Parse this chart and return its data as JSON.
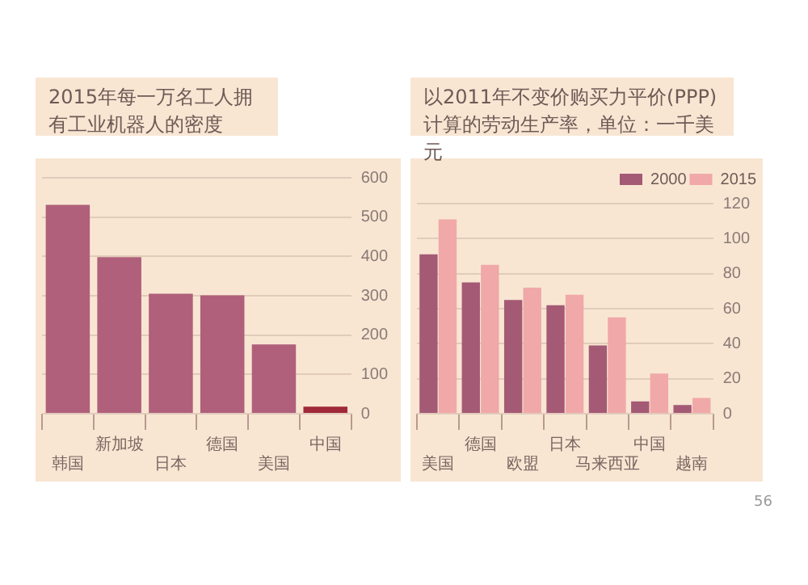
{
  "chart_data": [
    {
      "type": "bar",
      "title": "2015年每一万名工人拥有工业机器人的密度",
      "categories": [
        "韩国",
        "新加坡",
        "日本",
        "德国",
        "美国",
        "中国"
      ],
      "values": [
        531,
        398,
        305,
        301,
        176,
        18
      ],
      "colors": [
        "#b0607a",
        "#b0607a",
        "#b0607a",
        "#b0607a",
        "#b0607a",
        "#a02838"
      ],
      "ylim": [
        0,
        600
      ],
      "yticks": [
        0,
        100,
        200,
        300,
        400,
        500,
        600
      ],
      "grid": "y",
      "legend": false
    },
    {
      "type": "bar",
      "title": "以2011年不变价购买力平价(PPP)计算的劳动生产率，单位：一千美元",
      "categories": [
        "美国",
        "德国",
        "欧盟",
        "日本",
        "马来西亚",
        "中国",
        "越南"
      ],
      "series": [
        {
          "name": "2000",
          "color": "#a45a74",
          "values": [
            91,
            75,
            65,
            62,
            39,
            7,
            5
          ]
        },
        {
          "name": "2015",
          "color": "#f0a8a8",
          "values": [
            111,
            85,
            72,
            68,
            55,
            23,
            9
          ]
        }
      ],
      "ylim": [
        0,
        120
      ],
      "yticks": [
        0,
        20,
        40,
        60,
        80,
        100,
        120
      ],
      "grid": "y",
      "legend": "top right",
      "annotations": [
        "56"
      ]
    }
  ]
}
